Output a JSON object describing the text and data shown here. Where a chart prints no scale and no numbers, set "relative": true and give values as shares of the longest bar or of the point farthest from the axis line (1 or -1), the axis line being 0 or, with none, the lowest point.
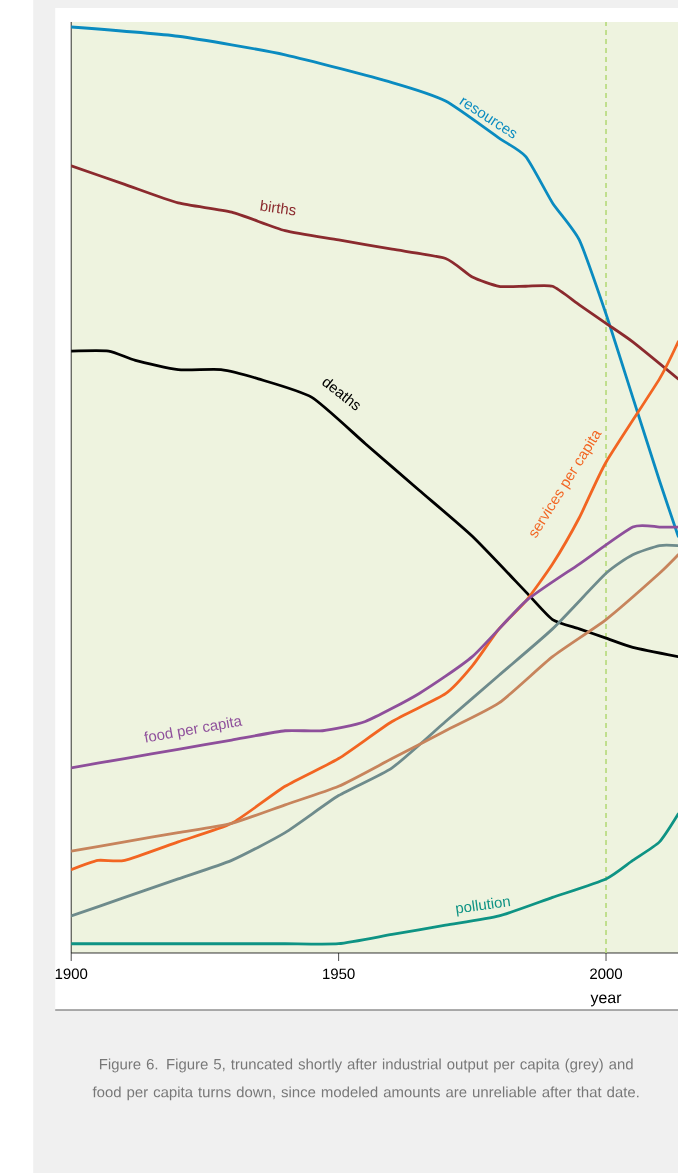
{
  "chart_data": {
    "type": "line",
    "relative": true,
    "xlabel": "year",
    "xlim": [
      1900,
      2013.5
    ],
    "xticks": [
      1900,
      1950,
      2000
    ],
    "annotations": [
      "Figure 6. Figure 5, truncated shortly after industrial output per capita (grey) and food per capita turns down, since modeled amounts are unreliable after that date."
    ],
    "ref_lines": [
      {
        "axis": "x",
        "value": 2000,
        "color": "#b5d97a",
        "line_style": "dashed"
      }
    ],
    "series": [
      {
        "name": "resources",
        "color": "#0a8bc0",
        "x": [
          1900,
          1920,
          1940,
          1960,
          1970,
          1980,
          1985,
          1990,
          1995,
          2000,
          2005,
          2010,
          2013.5
        ],
        "values": [
          1.0,
          0.99,
          0.97,
          0.94,
          0.92,
          0.88,
          0.86,
          0.81,
          0.77,
          0.69,
          0.6,
          0.51,
          0.45
        ]
      },
      {
        "name": "births",
        "color": "#8b2a2e",
        "x": [
          1900,
          1910,
          1920,
          1930,
          1940,
          1950,
          1960,
          1970,
          1975,
          1980,
          1985,
          1990,
          1995,
          2000,
          2005,
          2013.5
        ],
        "values": [
          0.85,
          0.83,
          0.81,
          0.8,
          0.78,
          0.77,
          0.76,
          0.75,
          0.73,
          0.72,
          0.72,
          0.72,
          0.7,
          0.68,
          0.66,
          0.62
        ]
      },
      {
        "name": "deaths",
        "color": "#000000",
        "x": [
          1900,
          1907,
          1912,
          1920,
          1928,
          1935,
          1945,
          1955,
          1965,
          1975,
          1985,
          1990,
          1995,
          2000,
          2005,
          2013.5
        ],
        "values": [
          0.65,
          0.65,
          0.64,
          0.63,
          0.63,
          0.62,
          0.6,
          0.55,
          0.5,
          0.45,
          0.39,
          0.36,
          0.35,
          0.34,
          0.33,
          0.32
        ]
      },
      {
        "name": "services per capita",
        "color": "#f26522",
        "x": [
          1900,
          1905,
          1910,
          1920,
          1930,
          1940,
          1950,
          1960,
          1970,
          1975,
          1980,
          1985,
          1990,
          1995,
          2000,
          2010,
          2013.5
        ],
        "values": [
          0.09,
          0.1,
          0.1,
          0.12,
          0.14,
          0.18,
          0.21,
          0.25,
          0.28,
          0.31,
          0.35,
          0.38,
          0.42,
          0.47,
          0.53,
          0.62,
          0.66
        ]
      },
      {
        "name": "food per capita",
        "color": "#8e4f9b",
        "x": [
          1900,
          1910,
          1920,
          1930,
          1940,
          1947,
          1955,
          1965,
          1975,
          1985,
          1995,
          2005,
          2010,
          2013.5
        ],
        "values": [
          0.2,
          0.21,
          0.22,
          0.23,
          0.24,
          0.24,
          0.25,
          0.28,
          0.32,
          0.38,
          0.42,
          0.46,
          0.46,
          0.46
        ]
      },
      {
        "color": "#6e8b8c",
        "x": [
          1900,
          1910,
          1920,
          1930,
          1940,
          1950,
          1960,
          1970,
          1980,
          1990,
          2000,
          2005,
          2010,
          2013.5
        ],
        "values": [
          0.04,
          0.06,
          0.08,
          0.1,
          0.13,
          0.17,
          0.2,
          0.25,
          0.3,
          0.35,
          0.41,
          0.43,
          0.44,
          0.44
        ]
      },
      {
        "color": "#c7845c",
        "x": [
          1900,
          1910,
          1920,
          1930,
          1940,
          1950,
          1960,
          1970,
          1980,
          1990,
          2000,
          2010,
          2013.5
        ],
        "values": [
          0.11,
          0.12,
          0.13,
          0.14,
          0.16,
          0.18,
          0.21,
          0.24,
          0.27,
          0.32,
          0.36,
          0.41,
          0.43
        ]
      },
      {
        "name": "pollution",
        "color": "#0e9384",
        "x": [
          1900,
          1920,
          1930,
          1940,
          1950,
          1960,
          1970,
          1980,
          1990,
          2000,
          2005,
          2010,
          2013.5
        ],
        "values": [
          0.01,
          0.01,
          0.01,
          0.01,
          0.01,
          0.02,
          0.03,
          0.04,
          0.06,
          0.08,
          0.1,
          0.12,
          0.15
        ]
      }
    ]
  }
}
